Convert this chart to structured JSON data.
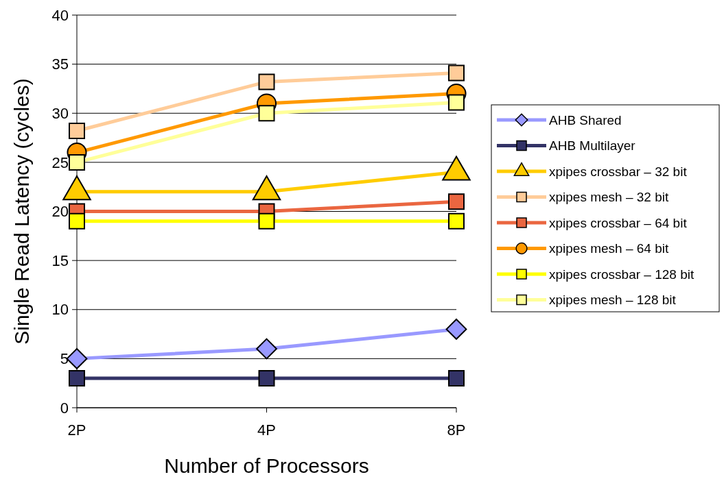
{
  "chart_data": {
    "type": "line",
    "xlabel": "Number of Processors",
    "ylabel": "Single Read Latency  (cycles)",
    "categories": [
      "2P",
      "4P",
      "8P"
    ],
    "series": [
      {
        "name": "AHB Shared",
        "color": "#9999ff",
        "marker": "diamond",
        "values": [
          5,
          6,
          8
        ]
      },
      {
        "name": "AHB Multilayer",
        "color": "#333366",
        "marker": "square",
        "values": [
          3,
          3,
          3
        ]
      },
      {
        "name": "xpipes crossbar – 32 bit",
        "color": "#ffcc00",
        "marker": "triangle",
        "values": [
          22,
          22,
          24
        ]
      },
      {
        "name": "xpipes mesh – 32 bit",
        "color": "#ffcc99",
        "marker": "square",
        "values": [
          28.2,
          33.2,
          34.1
        ]
      },
      {
        "name": "xpipes crossbar – 64 bit",
        "color": "#ea6640",
        "marker": "square",
        "values": [
          20,
          20,
          21
        ]
      },
      {
        "name": "xpipes mesh – 64 bit",
        "color": "#ff9900",
        "marker": "circle",
        "values": [
          26,
          31,
          32
        ]
      },
      {
        "name": "xpipes crossbar – 128 bit",
        "color": "#ffff00",
        "marker": "square",
        "values": [
          19,
          19,
          19
        ]
      },
      {
        "name": "xpipes mesh – 128 bit",
        "color": "#ffff99",
        "marker": "square",
        "values": [
          25,
          30,
          31.1
        ]
      }
    ],
    "ylim": [
      0,
      40
    ],
    "yticks": [
      0,
      5,
      10,
      15,
      20,
      25,
      30,
      35,
      40
    ],
    "grid": "y",
    "legend": "right"
  }
}
